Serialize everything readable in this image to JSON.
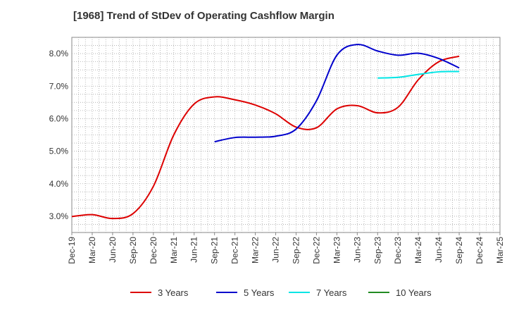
{
  "chart_data": {
    "type": "line",
    "title": "[1968]  Trend of StDev of Operating Cashflow Margin",
    "xlabel": "",
    "ylabel": "",
    "x": [
      "Dec-19",
      "Mar-20",
      "Jun-20",
      "Sep-20",
      "Dec-20",
      "Mar-21",
      "Jun-21",
      "Sep-21",
      "Dec-21",
      "Mar-22",
      "Jun-22",
      "Sep-22",
      "Dec-22",
      "Mar-23",
      "Jun-23",
      "Sep-23",
      "Dec-23",
      "Mar-24",
      "Jun-24",
      "Sep-24",
      "Dec-24",
      "Mar-25"
    ],
    "ylim": [
      2.5,
      8.5
    ],
    "yticks": [
      3.0,
      4.0,
      5.0,
      6.0,
      7.0,
      8.0
    ],
    "ytick_labels": [
      "3.0%",
      "4.0%",
      "5.0%",
      "6.0%",
      "7.0%",
      "8.0%"
    ],
    "grid": true,
    "legend_position": "bottom",
    "series": [
      {
        "name": "3 Years",
        "color": "#dd0000",
        "values": [
          2.99,
          3.05,
          2.93,
          3.08,
          3.92,
          5.5,
          6.45,
          6.67,
          6.58,
          6.42,
          6.15,
          5.74,
          5.72,
          6.3,
          6.4,
          6.18,
          6.35,
          7.2,
          7.75,
          7.92,
          null,
          null
        ]
      },
      {
        "name": "5 Years",
        "color": "#0000cc",
        "values": [
          null,
          null,
          null,
          null,
          null,
          null,
          null,
          5.29,
          5.42,
          5.43,
          5.46,
          5.68,
          6.55,
          7.95,
          8.28,
          8.08,
          7.95,
          8.01,
          7.85,
          7.56,
          null,
          null
        ]
      },
      {
        "name": "7 Years",
        "color": "#00e5e5",
        "values": [
          null,
          null,
          null,
          null,
          null,
          null,
          null,
          null,
          null,
          null,
          null,
          null,
          null,
          null,
          null,
          7.25,
          7.27,
          7.36,
          7.44,
          7.45,
          null,
          null
        ]
      },
      {
        "name": "10 Years",
        "color": "#228b22",
        "values": [
          null,
          null,
          null,
          null,
          null,
          null,
          null,
          null,
          null,
          null,
          null,
          null,
          null,
          null,
          null,
          null,
          null,
          null,
          null,
          null,
          null,
          null
        ]
      }
    ]
  }
}
